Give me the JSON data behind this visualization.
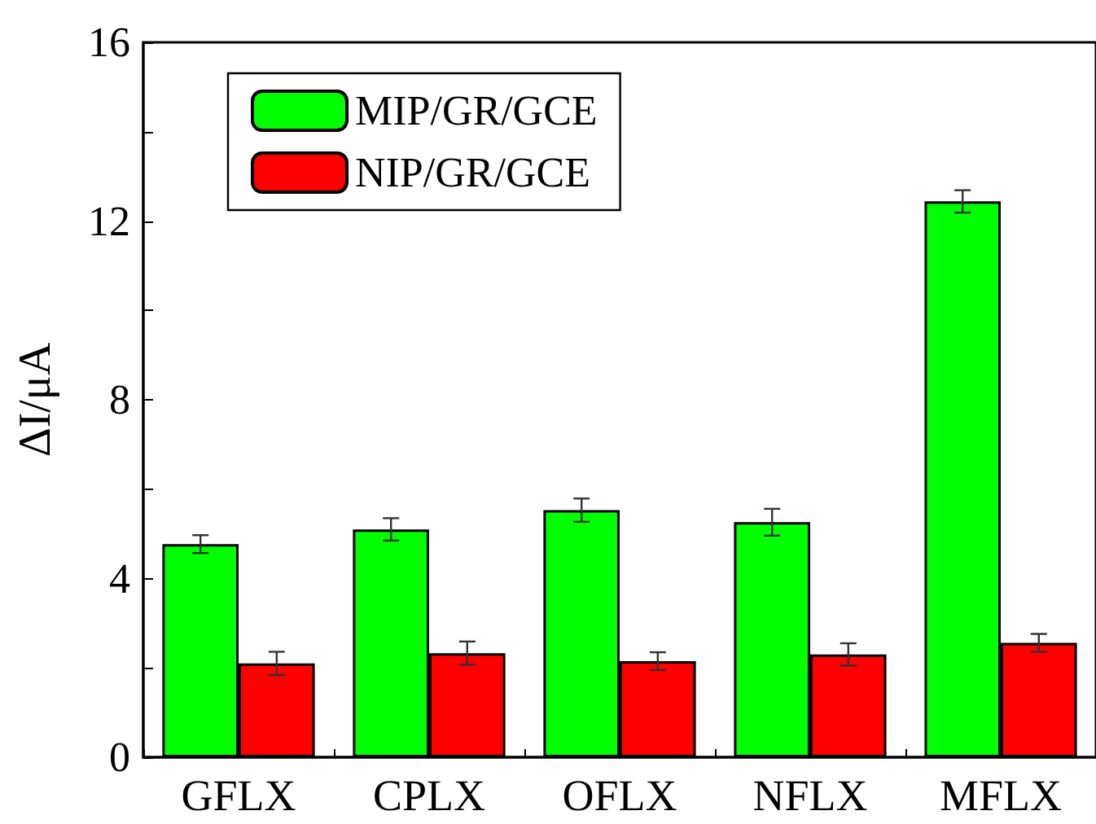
{
  "chart_data": {
    "type": "bar",
    "ylabel": "ΔI/μA",
    "categories": [
      "GFLX",
      "CPLX",
      "OFLX",
      "NFLX",
      "MFLX"
    ],
    "series": [
      {
        "name": "MIP/GR/GCE",
        "color": "#00ff00",
        "values": [
          4.77,
          5.1,
          5.53,
          5.26,
          12.44
        ],
        "errors": [
          0.2,
          0.25,
          0.26,
          0.3,
          0.25
        ]
      },
      {
        "name": "NIP/GR/GCE",
        "color": "#ff0000",
        "values": [
          2.1,
          2.33,
          2.15,
          2.3,
          2.56
        ],
        "errors": [
          0.26,
          0.26,
          0.2,
          0.25,
          0.2
        ]
      }
    ],
    "ylim": [
      0,
      16
    ],
    "yticks": [
      0,
      {
        "value": 2,
        "label": null
      },
      4,
      {
        "value": 6,
        "label": null
      },
      8,
      {
        "value": 10,
        "label": null
      },
      12,
      {
        "value": 14,
        "label": null
      },
      16
    ],
    "legend": "top left",
    "grid": false
  }
}
